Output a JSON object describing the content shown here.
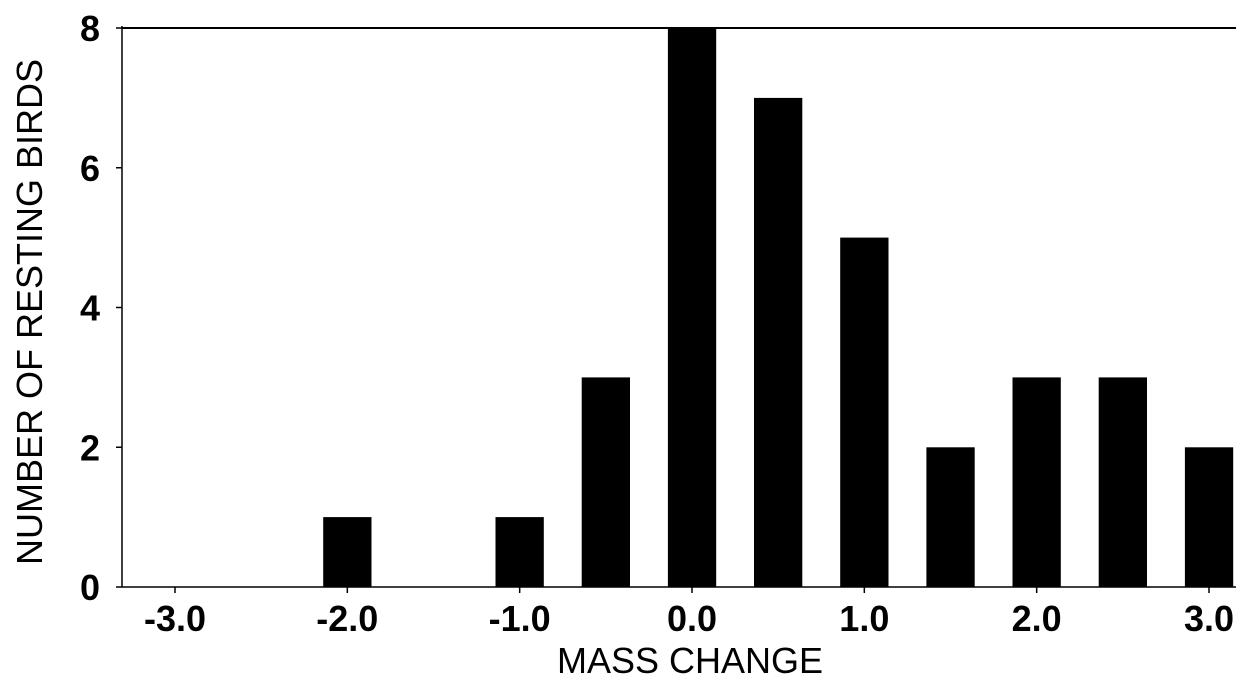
{
  "chart_data": {
    "type": "bar",
    "xlabel": "MASS CHANGE",
    "ylabel": "NUMBER OF RESTING BIRDS",
    "ylim": [
      0,
      8
    ],
    "xlim": [
      -3.0,
      3.0
    ],
    "x_ticks": [
      "-3.0",
      "-2.0",
      "-1.0",
      "0.0",
      "1.0",
      "2.0",
      "3.0"
    ],
    "y_ticks": [
      "0",
      "2",
      "4",
      "6",
      "8"
    ],
    "x_tick_values": [
      -3.0,
      -2.0,
      -1.0,
      0.0,
      1.0,
      2.0,
      3.0
    ],
    "y_tick_values": [
      0,
      2,
      4,
      6,
      8
    ],
    "bar_width": 0.28,
    "bars": [
      {
        "x": -2.0,
        "value": 1
      },
      {
        "x": -1.0,
        "value": 1
      },
      {
        "x": -0.5,
        "value": 3
      },
      {
        "x": 0.0,
        "value": 8
      },
      {
        "x": 0.5,
        "value": 7
      },
      {
        "x": 1.0,
        "value": 5
      },
      {
        "x": 1.5,
        "value": 2
      },
      {
        "x": 2.0,
        "value": 3
      },
      {
        "x": 2.5,
        "value": 3
      },
      {
        "x": 3.0,
        "value": 2
      }
    ],
    "grid": false,
    "bar_color": "#000000"
  }
}
